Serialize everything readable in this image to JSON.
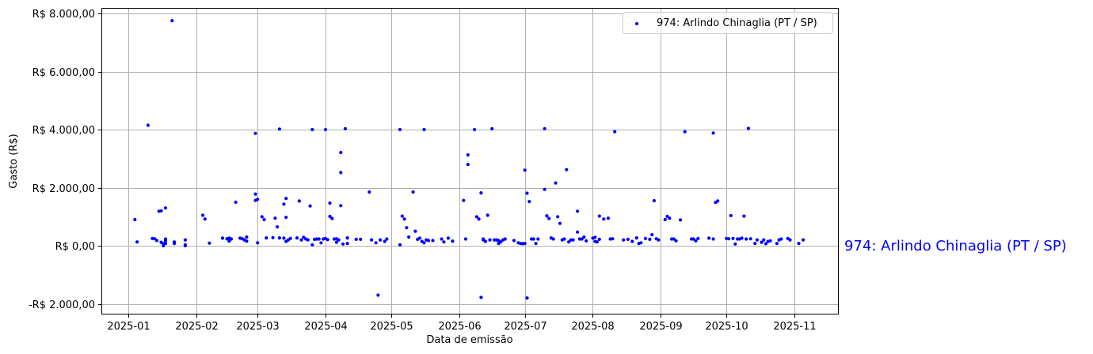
{
  "chart_data": {
    "type": "scatter",
    "title": "",
    "xlabel": "Data de emissão",
    "ylabel": "Gasto (R$)",
    "x_tick_labels": [
      "2025-01",
      "2025-02",
      "2025-03",
      "2025-04",
      "2025-05",
      "2025-06",
      "2025-07",
      "2025-08",
      "2025-09",
      "2025-10",
      "2025-11"
    ],
    "y_tick_labels": [
      "-R$ 2.000,00",
      "R$ 0,00",
      "R$ 2.000,00",
      "R$ 4.000,00",
      "R$ 6.000,00",
      "R$ 8.000,00"
    ],
    "y_ticks": [
      -2000,
      0,
      2000,
      4000,
      6000,
      8000
    ],
    "ylim": [
      -2300,
      8200
    ],
    "xlim": [
      "2024-12-20",
      "2025-11-18"
    ],
    "grid": true,
    "legend_position": "upper right",
    "annotation": "974: Arlindo Chinaglia (PT / SP)",
    "series": [
      {
        "name": "974: Arlindo Chinaglia (PT / SP)",
        "color": "#0000ff",
        "x_unit": "days since 2025-01-01",
        "points": [
          [
            3,
            900
          ],
          [
            4,
            130
          ],
          [
            9,
            4150
          ],
          [
            11,
            250
          ],
          [
            12,
            240
          ],
          [
            13,
            180
          ],
          [
            14,
            1190
          ],
          [
            15,
            1200
          ],
          [
            15,
            120
          ],
          [
            16,
            70
          ],
          [
            16,
            0
          ],
          [
            17,
            1300
          ],
          [
            17,
            170
          ],
          [
            17,
            230
          ],
          [
            17,
            80
          ],
          [
            20,
            7750
          ],
          [
            21,
            130
          ],
          [
            21,
            80
          ],
          [
            26,
            200
          ],
          [
            26,
            0
          ],
          [
            26,
            30
          ],
          [
            34,
            1050
          ],
          [
            35,
            920
          ],
          [
            37,
            90
          ],
          [
            43,
            260
          ],
          [
            45,
            240
          ],
          [
            46,
            260
          ],
          [
            46,
            180
          ],
          [
            46,
            160
          ],
          [
            47,
            230
          ],
          [
            49,
            1500
          ],
          [
            51,
            260
          ],
          [
            52,
            240
          ],
          [
            53,
            200
          ],
          [
            54,
            160
          ],
          [
            54,
            300
          ],
          [
            58,
            3870
          ],
          [
            58,
            1560
          ],
          [
            58,
            1780
          ],
          [
            59,
            100
          ],
          [
            59,
            1600
          ],
          [
            61,
            1000
          ],
          [
            62,
            900
          ],
          [
            63,
            270
          ],
          [
            66,
            280
          ],
          [
            67,
            950
          ],
          [
            68,
            650
          ],
          [
            69,
            4020
          ],
          [
            69,
            270
          ],
          [
            71,
            1430
          ],
          [
            71,
            260
          ],
          [
            72,
            150
          ],
          [
            72,
            980
          ],
          [
            72,
            1630
          ],
          [
            73,
            200
          ],
          [
            74,
            250
          ],
          [
            77,
            270
          ],
          [
            78,
            1540
          ],
          [
            79,
            200
          ],
          [
            80,
            290
          ],
          [
            81,
            230
          ],
          [
            82,
            200
          ],
          [
            83,
            1370
          ],
          [
            84,
            4000
          ],
          [
            84,
            30
          ],
          [
            85,
            220
          ],
          [
            86,
            230
          ],
          [
            87,
            230
          ],
          [
            88,
            100
          ],
          [
            89,
            230
          ],
          [
            90,
            4000
          ],
          [
            90,
            250
          ],
          [
            91,
            210
          ],
          [
            92,
            1470
          ],
          [
            92,
            1010
          ],
          [
            93,
            940
          ],
          [
            94,
            230
          ],
          [
            95,
            240
          ],
          [
            95,
            120
          ],
          [
            96,
            200
          ],
          [
            97,
            3210
          ],
          [
            97,
            2520
          ],
          [
            97,
            1380
          ],
          [
            98,
            60
          ],
          [
            99,
            4030
          ],
          [
            100,
            270
          ],
          [
            100,
            80
          ],
          [
            104,
            220
          ],
          [
            106,
            220
          ],
          [
            110,
            1850
          ],
          [
            111,
            200
          ],
          [
            113,
            100
          ],
          [
            114,
            -1700
          ],
          [
            115,
            200
          ],
          [
            117,
            150
          ],
          [
            118,
            230
          ],
          [
            124,
            4000
          ],
          [
            124,
            30
          ],
          [
            125,
            1020
          ],
          [
            126,
            920
          ],
          [
            127,
            620
          ],
          [
            128,
            300
          ],
          [
            130,
            1850
          ],
          [
            131,
            500
          ],
          [
            132,
            220
          ],
          [
            133,
            260
          ],
          [
            134,
            150
          ],
          [
            135,
            4000
          ],
          [
            135,
            100
          ],
          [
            136,
            200
          ],
          [
            137,
            180
          ],
          [
            139,
            180
          ],
          [
            143,
            230
          ],
          [
            144,
            130
          ],
          [
            146,
            260
          ],
          [
            148,
            160
          ],
          [
            153,
            1560
          ],
          [
            154,
            230
          ],
          [
            155,
            3130
          ],
          [
            155,
            2800
          ],
          [
            158,
            4000
          ],
          [
            159,
            1000
          ],
          [
            160,
            920
          ],
          [
            161,
            1820
          ],
          [
            161,
            -1780
          ],
          [
            162,
            200
          ],
          [
            162,
            230
          ],
          [
            163,
            150
          ],
          [
            164,
            1050
          ],
          [
            165,
            200
          ],
          [
            166,
            4030
          ],
          [
            167,
            200
          ],
          [
            168,
            200
          ],
          [
            169,
            180
          ],
          [
            169,
            80
          ],
          [
            170,
            130
          ],
          [
            171,
            200
          ],
          [
            172,
            230
          ],
          [
            176,
            180
          ],
          [
            178,
            100
          ],
          [
            179,
            80
          ],
          [
            180,
            70
          ],
          [
            181,
            2600
          ],
          [
            181,
            80
          ],
          [
            182,
            1810
          ],
          [
            182,
            -1800
          ],
          [
            183,
            1520
          ],
          [
            184,
            230
          ],
          [
            185,
            230
          ],
          [
            186,
            80
          ],
          [
            187,
            230
          ],
          [
            190,
            4030
          ],
          [
            190,
            1940
          ],
          [
            191,
            1030
          ],
          [
            192,
            940
          ],
          [
            193,
            270
          ],
          [
            194,
            230
          ],
          [
            195,
            2160
          ],
          [
            196,
            1000
          ],
          [
            197,
            770
          ],
          [
            198,
            200
          ],
          [
            199,
            230
          ],
          [
            200,
            2620
          ],
          [
            201,
            130
          ],
          [
            202,
            200
          ],
          [
            203,
            200
          ],
          [
            205,
            1190
          ],
          [
            205,
            470
          ],
          [
            206,
            230
          ],
          [
            207,
            230
          ],
          [
            208,
            300
          ],
          [
            209,
            170
          ],
          [
            212,
            260
          ],
          [
            213,
            290
          ],
          [
            213,
            150
          ],
          [
            214,
            130
          ],
          [
            215,
            1020
          ],
          [
            215,
            220
          ],
          [
            217,
            920
          ],
          [
            219,
            950
          ],
          [
            220,
            230
          ],
          [
            221,
            240
          ],
          [
            222,
            3930
          ],
          [
            226,
            200
          ],
          [
            228,
            220
          ],
          [
            230,
            150
          ],
          [
            232,
            270
          ],
          [
            233,
            80
          ],
          [
            234,
            100
          ],
          [
            236,
            250
          ],
          [
            238,
            220
          ],
          [
            239,
            380
          ],
          [
            240,
            1550
          ],
          [
            241,
            240
          ],
          [
            242,
            200
          ],
          [
            245,
            900
          ],
          [
            246,
            1010
          ],
          [
            247,
            950
          ],
          [
            248,
            230
          ],
          [
            249,
            230
          ],
          [
            250,
            170
          ],
          [
            252,
            890
          ],
          [
            254,
            3930
          ],
          [
            257,
            230
          ],
          [
            258,
            230
          ],
          [
            259,
            170
          ],
          [
            260,
            250
          ],
          [
            265,
            260
          ],
          [
            267,
            3880
          ],
          [
            267,
            230
          ],
          [
            268,
            1490
          ],
          [
            269,
            1540
          ],
          [
            273,
            250
          ],
          [
            274,
            240
          ],
          [
            275,
            1040
          ],
          [
            276,
            250
          ],
          [
            277,
            60
          ],
          [
            278,
            230
          ],
          [
            279,
            230
          ],
          [
            280,
            260
          ],
          [
            281,
            1020
          ],
          [
            282,
            230
          ],
          [
            283,
            4040
          ],
          [
            284,
            240
          ],
          [
            286,
            80
          ],
          [
            287,
            200
          ],
          [
            289,
            120
          ],
          [
            290,
            200
          ],
          [
            291,
            70
          ],
          [
            292,
            150
          ],
          [
            293,
            170
          ],
          [
            296,
            80
          ],
          [
            297,
            200
          ],
          [
            298,
            230
          ],
          [
            301,
            250
          ],
          [
            302,
            200
          ],
          [
            306,
            80
          ],
          [
            308,
            200
          ]
        ]
      }
    ]
  },
  "legend": {
    "label": "974: Arlindo Chinaglia (PT / SP)"
  },
  "side_annotation": {
    "text": "974: Arlindo Chinaglia (PT / SP)",
    "color": "#0000ff"
  },
  "axes": {
    "xlabel": "Data de emissão",
    "ylabel": "Gasto (R$)"
  }
}
